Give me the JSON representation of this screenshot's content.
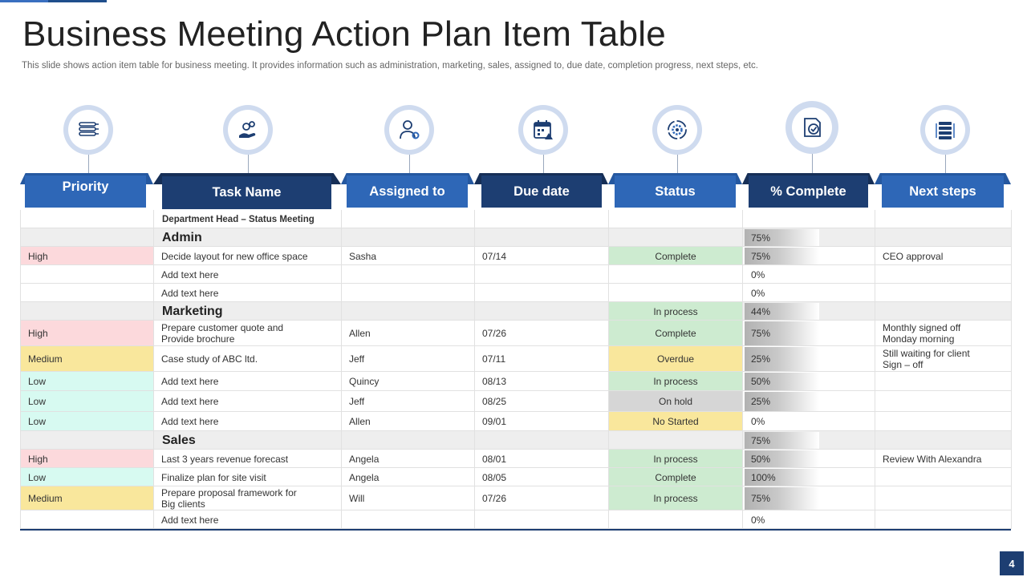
{
  "title": "Business Meeting Action Plan Item Table",
  "subtitle": "This slide shows action item table for business meeting. It provides information such as administration, marketing, sales, assigned to, due date, completion progress, next steps, etc.",
  "page_number": "4",
  "colors": {
    "header_light": "#2e67b7",
    "header_dark": "#1d3e72",
    "priority_high": "#fcd9dc",
    "priority_medium": "#f9e79c",
    "priority_low": "#d7faf1",
    "status_green": "#cdebd0",
    "status_yellow": "#f9e79c",
    "status_gray": "#d6d6d6"
  },
  "columns": [
    {
      "label": "Priority",
      "icon": "list-priority-icon"
    },
    {
      "label": "Task Name",
      "icon": "hand-gears-icon"
    },
    {
      "label": "Assigned to",
      "icon": "person-gear-icon"
    },
    {
      "label": "Due date",
      "icon": "calendar-warning-icon"
    },
    {
      "label": "Status",
      "icon": "gear-cycle-icon"
    },
    {
      "label": "% Complete",
      "icon": "document-check-icon"
    },
    {
      "label": "Next steps",
      "icon": "stack-arrows-icon"
    }
  ],
  "dept_label": "Department Head – Status Meeting",
  "sections": [
    {
      "name": "Admin",
      "complete": "75%",
      "status": "",
      "rows": [
        {
          "priority": "High",
          "task": "Decide layout for new office space",
          "assigned": "Sasha",
          "due": "07/14",
          "status": "Complete",
          "complete": "75%",
          "next": "CEO approval"
        },
        {
          "priority": "",
          "task": "Add text here",
          "assigned": "",
          "due": "",
          "status": "",
          "complete": "0%",
          "next": ""
        },
        {
          "priority": "",
          "task": "Add text here",
          "assigned": "",
          "due": "",
          "status": "",
          "complete": "0%",
          "next": ""
        }
      ]
    },
    {
      "name": "Marketing",
      "complete": "44%",
      "status": "In process",
      "rows": [
        {
          "priority": "High",
          "task": "Prepare customer quote and\nProvide brochure",
          "assigned": "Allen",
          "due": "07/26",
          "status": "Complete",
          "complete": "75%",
          "next": "Monthly signed off\nMonday morning"
        },
        {
          "priority": "Medium",
          "task": "Case study of ABC ltd.",
          "assigned": "Jeff",
          "due": "07/11",
          "status": "Overdue",
          "complete": "25%",
          "next": "Still waiting for client\nSign – off"
        },
        {
          "priority": "Low",
          "task": "Add text here",
          "assigned": "Quincy",
          "due": "08/13",
          "status": "In process",
          "complete": "50%",
          "next": ""
        },
        {
          "priority": "Low",
          "task": "Add text here",
          "assigned": "Jeff",
          "due": "08/25",
          "status": "On hold",
          "complete": "25%",
          "next": ""
        },
        {
          "priority": "Low",
          "task": "Add text here",
          "assigned": "Allen",
          "due": "09/01",
          "status": "No Started",
          "complete": "0%",
          "next": ""
        }
      ]
    },
    {
      "name": "Sales",
      "complete": "75%",
      "status": "",
      "rows": [
        {
          "priority": "High",
          "task": "Last 3 years revenue forecast",
          "assigned": "Angela",
          "due": "08/01",
          "status": "In process",
          "complete": "50%",
          "next": "Review With Alexandra"
        },
        {
          "priority": "Low",
          "task": "Finalize plan for site visit",
          "assigned": "Angela",
          "due": "08/05",
          "status": "Complete",
          "complete": "100%",
          "next": ""
        },
        {
          "priority": "Medium",
          "task": "Prepare proposal framework for\nBig clients",
          "assigned": "Will",
          "due": "07/26",
          "status": "In process",
          "complete": "75%",
          "next": ""
        },
        {
          "priority": "",
          "task": "Add text here",
          "assigned": "",
          "due": "",
          "status": "",
          "complete": "0%",
          "next": ""
        }
      ]
    }
  ]
}
